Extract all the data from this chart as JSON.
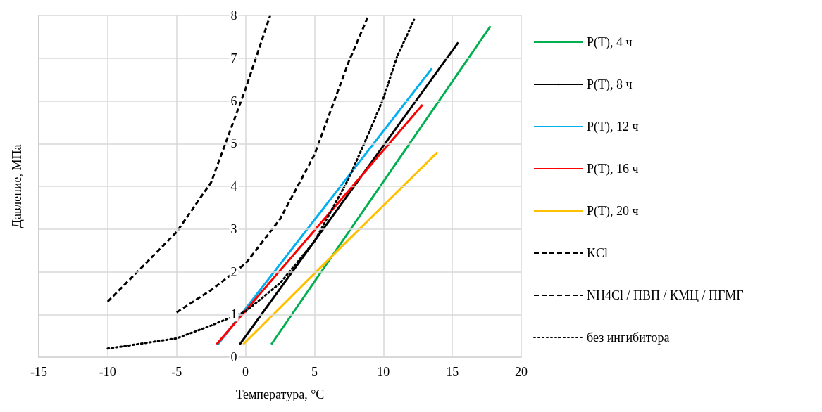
{
  "chart_data": {
    "type": "line",
    "xlabel": "Температура, °C",
    "ylabel": "Давление, МПа",
    "xlim": [
      -15,
      20
    ],
    "xticks": [
      -15,
      -10,
      -5,
      0,
      5,
      10,
      15,
      20
    ],
    "ylim": [
      0,
      8
    ],
    "yticks": [
      0,
      1,
      2,
      3,
      4,
      5,
      6,
      7,
      8
    ],
    "grid": true,
    "legend": "right",
    "marker": "none",
    "series": [
      {
        "name": "P(T), 4 ч",
        "color": "#00b050",
        "line_style": "solid",
        "x": [
          1.87,
          17.77
        ],
        "values": [
          0.3,
          7.75
        ]
      },
      {
        "name": "P(T), 8 ч",
        "color": "#000000",
        "line_style": "solid",
        "x": [
          -0.42,
          15.43
        ],
        "values": [
          0.3,
          7.37
        ]
      },
      {
        "name": "P(T), 12 ч",
        "color": "#00b0f0",
        "line_style": "solid",
        "x": [
          -2.0,
          13.52
        ],
        "values": [
          0.3,
          6.76
        ]
      },
      {
        "name": "P(T), 16 ч",
        "color": "#ff0000",
        "line_style": "solid",
        "x": [
          -2.1,
          12.84
        ],
        "values": [
          0.3,
          5.91
        ]
      },
      {
        "name": "P(T), 20 ч",
        "color": "#ffc000",
        "line_style": "solid",
        "x": [
          -0.17,
          5.6,
          13.93
        ],
        "values": [
          0.3,
          2.15,
          4.8
        ]
      },
      {
        "name": "KCl",
        "color": "#000000",
        "line_style": "dashed",
        "x": [
          -5,
          -2.5,
          0,
          2.5,
          5,
          7.5,
          8.92
        ],
        "values": [
          1.05,
          1.57,
          2.19,
          3.23,
          4.74,
          6.93,
          8
        ]
      },
      {
        "name": "NH4Cl / ПВП / КМЦ / ПГМГ",
        "color": "#000000",
        "line_style": "dashed",
        "x": [
          -10,
          -7.5,
          -5,
          -2.5,
          0,
          1.79
        ],
        "values": [
          1.3,
          2.11,
          2.93,
          4.09,
          6.28,
          8
        ]
      },
      {
        "name": "без ингибитора",
        "color": "#000000",
        "line_style": "dotted",
        "x": [
          -10,
          -5,
          -2.5,
          0,
          2.5,
          5,
          7.5,
          9,
          10,
          11,
          12.23
        ],
        "values": [
          0.2,
          0.44,
          0.74,
          1.07,
          1.73,
          2.71,
          4.19,
          5.29,
          6.06,
          7.04,
          7.9
        ]
      }
    ]
  }
}
